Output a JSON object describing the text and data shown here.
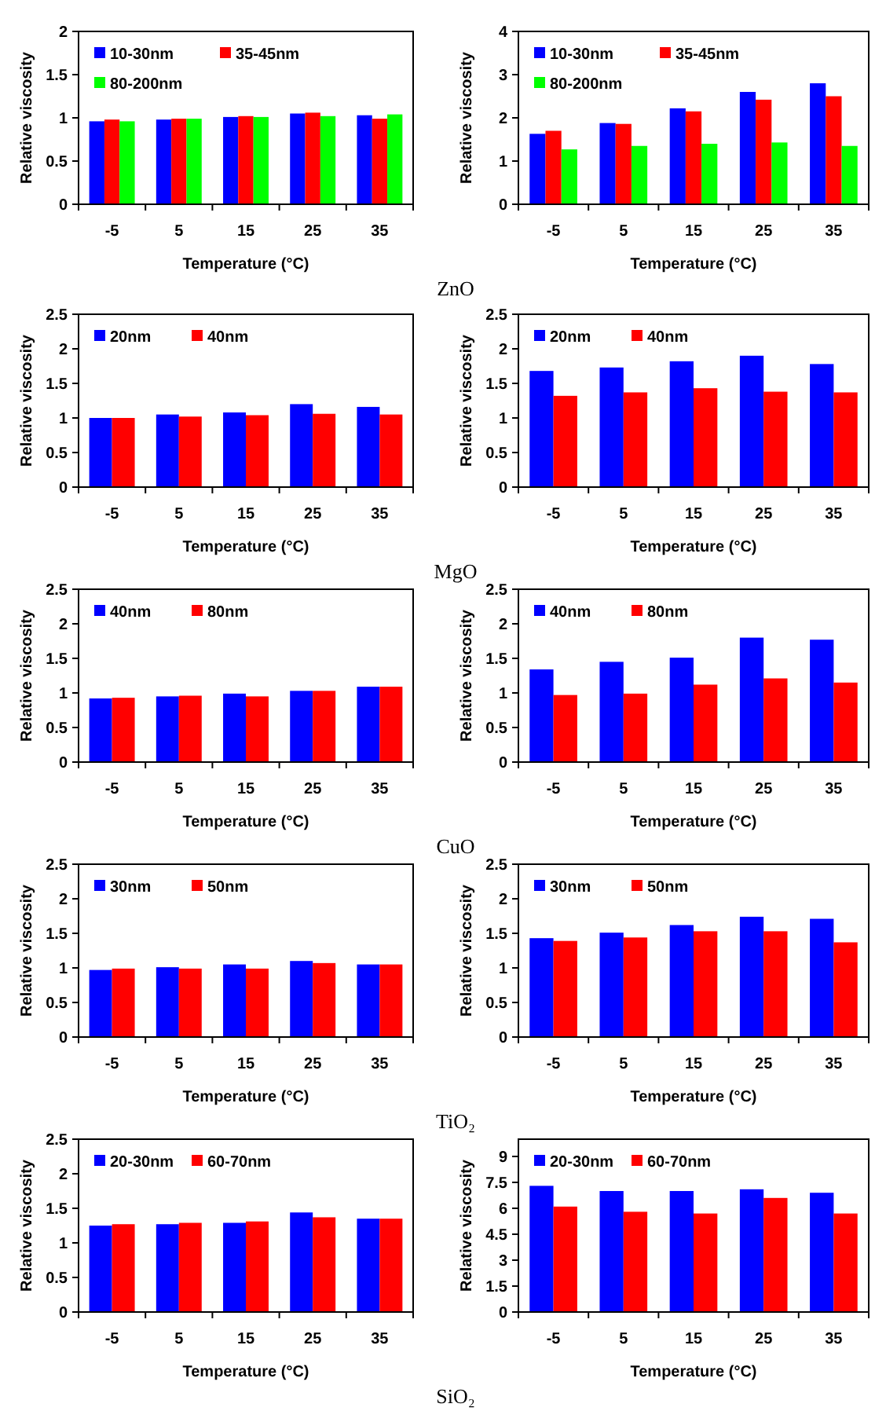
{
  "chart_data": [
    {
      "type": "bar",
      "xlabel": "Temperature (°C)",
      "ylabel": "Relative viscosity",
      "annotations": [
        "ZnO"
      ],
      "categories": [
        "-5",
        "5",
        "15",
        "25",
        "35"
      ],
      "ylim": [
        0,
        2
      ],
      "yticks": [
        0,
        0.5,
        1,
        1.5,
        2
      ],
      "grid": false,
      "legend": "top left",
      "series": [
        {
          "name": "10-30nm",
          "color": "#0000ff",
          "values": [
            0.96,
            0.98,
            1.01,
            1.05,
            1.03
          ]
        },
        {
          "name": "35-45nm",
          "color": "#ff0000",
          "values": [
            0.98,
            0.99,
            1.02,
            1.06,
            0.99
          ]
        },
        {
          "name": "80-200nm",
          "color": "#00ff00",
          "values": [
            0.96,
            0.99,
            1.01,
            1.02,
            1.04
          ]
        }
      ]
    },
    {
      "type": "bar",
      "xlabel": "Temperature (°C)",
      "ylabel": "Relative viscosity",
      "categories": [
        "-5",
        "5",
        "15",
        "25",
        "35"
      ],
      "ylim": [
        0,
        4
      ],
      "yticks": [
        0,
        1,
        2,
        3,
        4
      ],
      "grid": false,
      "legend": "top left",
      "series": [
        {
          "name": "10-30nm",
          "color": "#0000ff",
          "values": [
            1.63,
            1.88,
            2.22,
            2.6,
            2.8
          ]
        },
        {
          "name": "35-45nm",
          "color": "#ff0000",
          "values": [
            1.7,
            1.86,
            2.15,
            2.42,
            2.5
          ]
        },
        {
          "name": "80-200nm",
          "color": "#00ff00",
          "values": [
            1.27,
            1.35,
            1.4,
            1.43,
            1.35
          ]
        }
      ]
    },
    {
      "type": "bar",
      "xlabel": "Temperature (°C)",
      "ylabel": "Relative viscosity",
      "annotations": [
        "MgO"
      ],
      "categories": [
        "-5",
        "5",
        "15",
        "25",
        "35"
      ],
      "ylim": [
        0,
        2.5
      ],
      "yticks": [
        0,
        0.5,
        1,
        1.5,
        2,
        2.5
      ],
      "grid": false,
      "legend": "top left",
      "series": [
        {
          "name": "20nm",
          "color": "#0000ff",
          "values": [
            1.0,
            1.05,
            1.08,
            1.2,
            1.16
          ]
        },
        {
          "name": "40nm",
          "color": "#ff0000",
          "values": [
            1.0,
            1.02,
            1.04,
            1.06,
            1.05
          ]
        }
      ]
    },
    {
      "type": "bar",
      "xlabel": "Temperature (°C)",
      "ylabel": "Relative viscosity",
      "categories": [
        "-5",
        "5",
        "15",
        "25",
        "35"
      ],
      "ylim": [
        0,
        2.5
      ],
      "yticks": [
        0,
        0.5,
        1,
        1.5,
        2,
        2.5
      ],
      "grid": false,
      "legend": "top left",
      "series": [
        {
          "name": "20nm",
          "color": "#0000ff",
          "values": [
            1.68,
            1.73,
            1.82,
            1.9,
            1.78
          ]
        },
        {
          "name": "40nm",
          "color": "#ff0000",
          "values": [
            1.32,
            1.37,
            1.43,
            1.38,
            1.37
          ]
        }
      ]
    },
    {
      "type": "bar",
      "xlabel": "Temperature (°C)",
      "ylabel": "Relative viscosity",
      "annotations": [
        "CuO"
      ],
      "categories": [
        "-5",
        "5",
        "15",
        "25",
        "35"
      ],
      "ylim": [
        0,
        2.5
      ],
      "yticks": [
        0,
        0.5,
        1,
        1.5,
        2,
        2.5
      ],
      "grid": false,
      "legend": "top left",
      "series": [
        {
          "name": "40nm",
          "color": "#0000ff",
          "values": [
            0.92,
            0.95,
            0.99,
            1.03,
            1.09
          ]
        },
        {
          "name": "80nm",
          "color": "#ff0000",
          "values": [
            0.93,
            0.96,
            0.95,
            1.03,
            1.09
          ]
        }
      ]
    },
    {
      "type": "bar",
      "xlabel": "Temperature (°C)",
      "ylabel": "Relative viscosity",
      "categories": [
        "-5",
        "5",
        "15",
        "25",
        "35"
      ],
      "ylim": [
        0,
        2.5
      ],
      "yticks": [
        0,
        0.5,
        1,
        1.5,
        2,
        2.5
      ],
      "grid": false,
      "legend": "top left",
      "series": [
        {
          "name": "40nm",
          "color": "#0000ff",
          "values": [
            1.34,
            1.45,
            1.51,
            1.8,
            1.77
          ]
        },
        {
          "name": "80nm",
          "color": "#ff0000",
          "values": [
            0.97,
            0.99,
            1.12,
            1.21,
            1.15
          ]
        }
      ]
    },
    {
      "type": "bar",
      "xlabel": "Temperature (°C)",
      "ylabel": "Relative viscosity",
      "annotations": [
        "TiO₂"
      ],
      "categories": [
        "-5",
        "5",
        "15",
        "25",
        "35"
      ],
      "ylim": [
        0,
        2.5
      ],
      "yticks": [
        0,
        0.5,
        1,
        1.5,
        2,
        2.5
      ],
      "grid": false,
      "legend": "top left",
      "series": [
        {
          "name": "30nm",
          "color": "#0000ff",
          "values": [
            0.97,
            1.01,
            1.05,
            1.1,
            1.05
          ]
        },
        {
          "name": "50nm",
          "color": "#ff0000",
          "values": [
            0.99,
            0.99,
            0.99,
            1.07,
            1.05
          ]
        }
      ]
    },
    {
      "type": "bar",
      "xlabel": "Temperature (°C)",
      "ylabel": "Relative viscosity",
      "categories": [
        "-5",
        "5",
        "15",
        "25",
        "35"
      ],
      "ylim": [
        0,
        2.5
      ],
      "yticks": [
        0,
        0.5,
        1,
        1.5,
        2,
        2.5
      ],
      "grid": false,
      "legend": "top left",
      "series": [
        {
          "name": "30nm",
          "color": "#0000ff",
          "values": [
            1.43,
            1.51,
            1.62,
            1.74,
            1.71
          ]
        },
        {
          "name": "50nm",
          "color": "#ff0000",
          "values": [
            1.39,
            1.44,
            1.53,
            1.53,
            1.37
          ]
        }
      ]
    },
    {
      "type": "bar",
      "xlabel": "Temperature (°C)",
      "ylabel": "Relative viscosity",
      "annotations": [
        "SiO₂"
      ],
      "categories": [
        "-5",
        "5",
        "15",
        "25",
        "35"
      ],
      "ylim": [
        0,
        2.5
      ],
      "yticks": [
        0,
        0.5,
        1,
        1.5,
        2,
        2.5
      ],
      "grid": false,
      "legend": "top left",
      "series": [
        {
          "name": "20-30nm",
          "color": "#0000ff",
          "values": [
            1.25,
            1.27,
            1.29,
            1.44,
            1.35
          ]
        },
        {
          "name": "60-70nm",
          "color": "#ff0000",
          "values": [
            1.27,
            1.29,
            1.31,
            1.37,
            1.35
          ]
        }
      ]
    },
    {
      "type": "bar",
      "xlabel": "Temperature (°C)",
      "ylabel": "Relative viscosity",
      "categories": [
        "-5",
        "5",
        "15",
        "25",
        "35"
      ],
      "ylim": [
        0,
        10
      ],
      "yticks": [
        0,
        1.5,
        3,
        4.5,
        6,
        7.5,
        9
      ],
      "grid": false,
      "legend": "top left",
      "series": [
        {
          "name": "20-30nm",
          "color": "#0000ff",
          "values": [
            7.3,
            7.0,
            7.0,
            7.1,
            6.9
          ]
        },
        {
          "name": "60-70nm",
          "color": "#ff0000",
          "values": [
            6.1,
            5.8,
            5.7,
            6.6,
            5.7
          ]
        }
      ]
    }
  ]
}
